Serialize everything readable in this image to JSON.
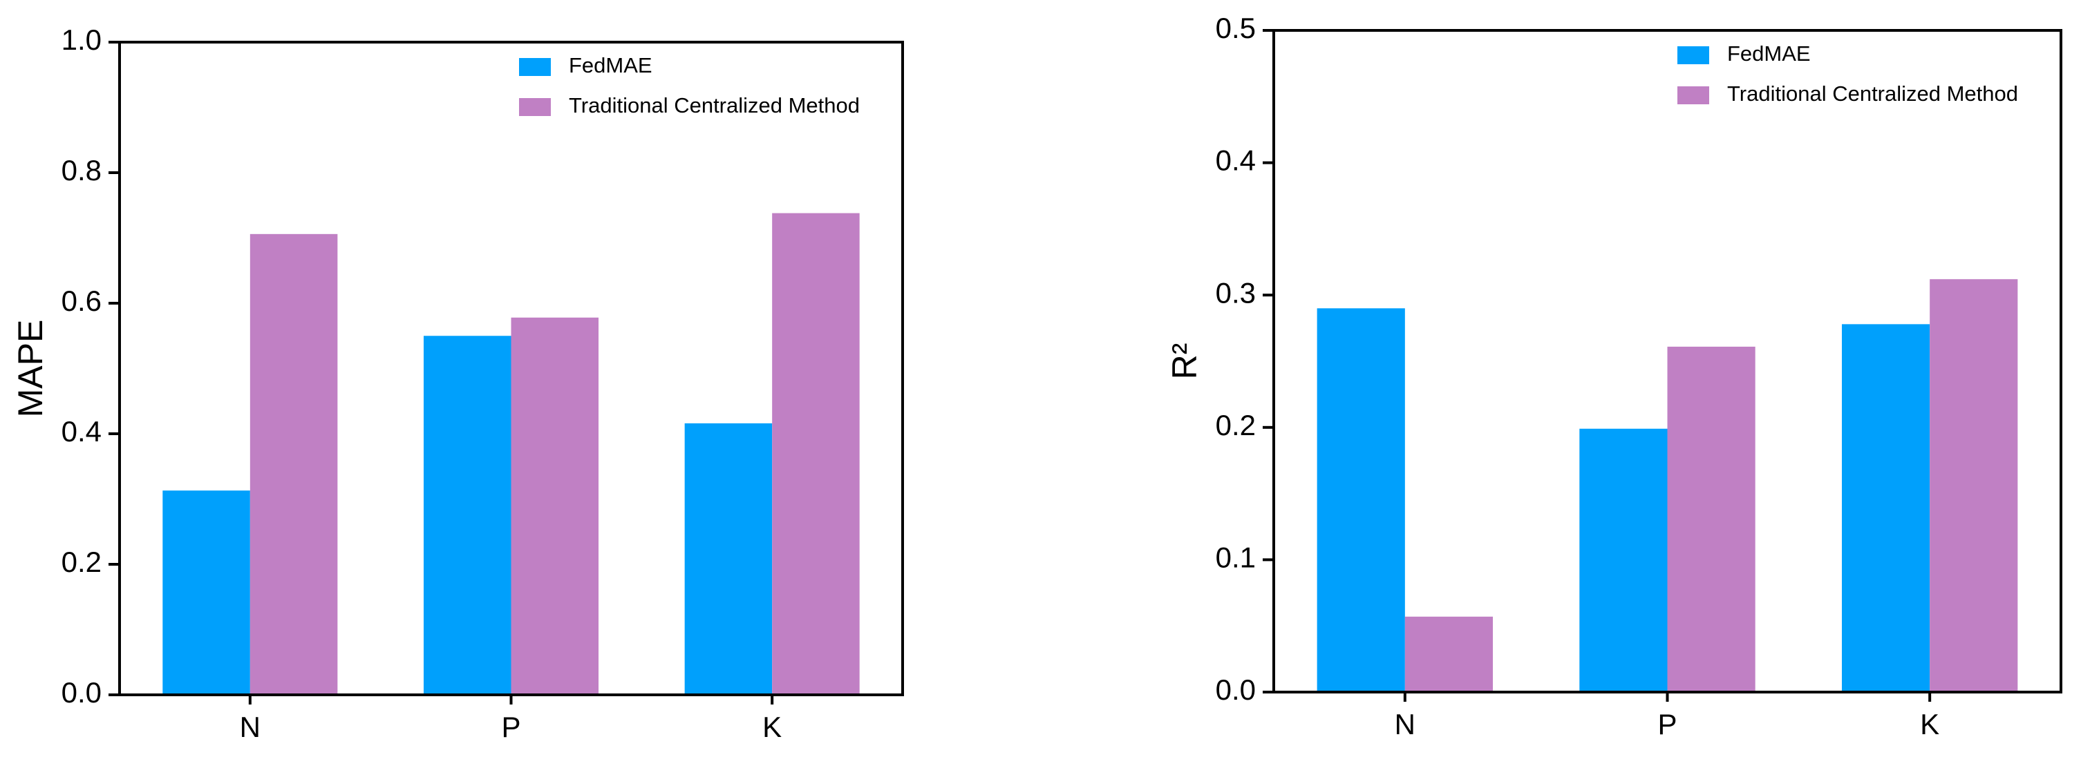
{
  "chart_data": [
    {
      "type": "bar",
      "ylabel": "MAPE",
      "categories": [
        "N",
        "P",
        "K"
      ],
      "series": [
        {
          "name": "FedMAE",
          "color": "#00a0fc",
          "values": [
            0.313,
            0.55,
            0.416
          ]
        },
        {
          "name": "Traditional Centralized Method",
          "color": "#c080c4",
          "values": [
            0.706,
            0.578,
            0.738
          ]
        }
      ],
      "ylim": [
        0,
        1
      ],
      "yticks": [
        {
          "value": 0,
          "label": "0.0"
        },
        0.2,
        0.4,
        0.6,
        0.8,
        {
          "value": 1,
          "label": "1.0"
        }
      ],
      "legend": "upper right"
    },
    {
      "type": "bar",
      "ylabel": "R²",
      "categories": [
        "N",
        "P",
        "K"
      ],
      "series": [
        {
          "name": "FedMAE",
          "color": "#00a0fc",
          "values": [
            0.29,
            0.199,
            0.278
          ]
        },
        {
          "name": "Traditional Centralized Method",
          "color": "#c080c4",
          "values": [
            0.057,
            0.261,
            0.312
          ]
        }
      ],
      "ylim": [
        0,
        0.5
      ],
      "yticks": [
        {
          "value": 0,
          "label": "0.0"
        },
        0.1,
        0.2,
        0.3,
        0.4,
        0.5
      ],
      "legend": "upper right"
    }
  ]
}
